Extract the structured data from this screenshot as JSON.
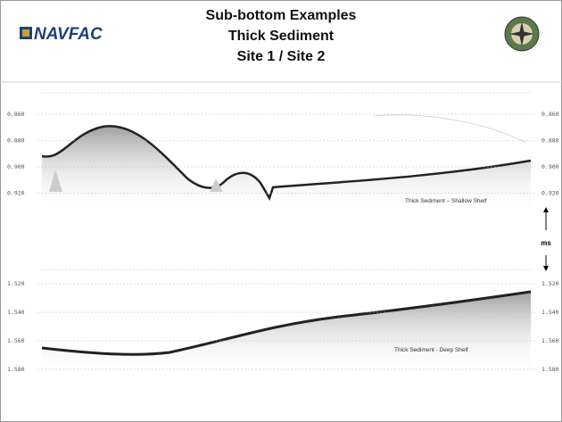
{
  "header": {
    "logo": "NAVFAC",
    "title": [
      "Sub-bottom Examples",
      "Thick Sediment",
      "Site 1 / Site 2"
    ]
  },
  "panels": [
    {
      "ticks": [
        "0.860",
        "0.880",
        "0.900",
        "0.920"
      ],
      "label": "Thick Sediment – Shallow Shelf"
    },
    {
      "ticks": [
        "1.520",
        "1.540",
        "1.560",
        "1.580"
      ],
      "label": "Thick Sediment - Deep Shelf"
    }
  ],
  "unit": "ms"
}
